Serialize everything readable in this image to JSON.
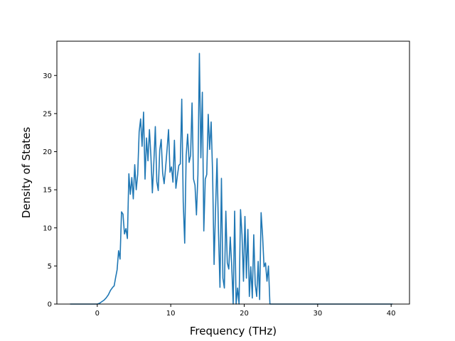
{
  "chart_data": {
    "type": "line",
    "title": "",
    "xlabel": "Frequency (THz)",
    "ylabel": "Density of States",
    "xlim": [
      -5.5,
      42.5
    ],
    "ylim": [
      0,
      34.5
    ],
    "xticks": [
      0,
      10,
      20,
      30,
      40
    ],
    "yticks": [
      0,
      5,
      10,
      15,
      20,
      25,
      30
    ],
    "grid": false,
    "legend": "none",
    "series": [
      {
        "color": "#1f77b4",
        "x": [
          -3.7,
          0.0,
          0.3,
          0.6,
          0.9,
          1.2,
          1.5,
          1.8,
          2.1,
          2.3,
          2.5,
          2.7,
          2.9,
          3.1,
          3.3,
          3.5,
          3.7,
          3.9,
          4.1,
          4.3,
          4.5,
          4.7,
          4.9,
          5.1,
          5.3,
          5.5,
          5.7,
          5.9,
          6.1,
          6.3,
          6.5,
          6.7,
          6.9,
          7.1,
          7.3,
          7.5,
          7.7,
          7.9,
          8.1,
          8.3,
          8.5,
          8.7,
          8.9,
          9.1,
          9.3,
          9.5,
          9.7,
          9.9,
          10.1,
          10.3,
          10.5,
          10.7,
          10.9,
          11.1,
          11.3,
          11.5,
          11.7,
          11.9,
          12.1,
          12.3,
          12.5,
          12.7,
          12.9,
          13.1,
          13.3,
          13.5,
          13.7,
          13.9,
          14.1,
          14.3,
          14.5,
          14.7,
          14.9,
          15.1,
          15.3,
          15.5,
          15.7,
          15.9,
          16.1,
          16.3,
          16.5,
          16.7,
          16.9,
          17.1,
          17.3,
          17.5,
          17.7,
          17.9,
          18.1,
          18.3,
          18.5,
          18.7,
          18.9,
          19.1,
          19.3,
          19.5,
          19.7,
          19.9,
          20.1,
          20.3,
          20.5,
          20.7,
          20.9,
          21.1,
          21.3,
          21.5,
          21.7,
          21.9,
          22.1,
          22.3,
          22.5,
          22.7,
          22.9,
          23.1,
          23.3,
          23.5,
          23.7,
          23.9,
          24.1,
          24.3,
          24.5,
          24.7,
          24.9,
          25.1,
          25.3,
          25.5,
          25.7,
          25.9,
          26.1,
          26.3,
          26.5,
          26.7,
          26.9,
          27.5,
          30.0,
          35.0,
          40.2
        ],
        "y": [
          0,
          0,
          0.1,
          0.3,
          0.5,
          0.8,
          1.2,
          1.8,
          2.2,
          2.4,
          3.5,
          4.5,
          7.0,
          5.9,
          12.1,
          11.8,
          9.2,
          9.9,
          8.6,
          17.1,
          14.4,
          16.6,
          13.8,
          18.3,
          15.0,
          17.0,
          22.6,
          24.3,
          20.7,
          25.2,
          16.4,
          21.8,
          18.8,
          22.9,
          19.4,
          14.6,
          18.6,
          23.3,
          16.1,
          14.9,
          20.2,
          21.6,
          17.2,
          15.8,
          17.9,
          20.3,
          22.9,
          17.3,
          18.0,
          16.0,
          21.5,
          15.2,
          16.8,
          18.2,
          18.4,
          26.9,
          13.4,
          8.0,
          19.5,
          22.3,
          18.6,
          19.5,
          26.4,
          16.4,
          15.6,
          11.7,
          17.0,
          32.9,
          19.2,
          27.8,
          9.6,
          16.4,
          17.0,
          24.9,
          20.3,
          23.9,
          17.0,
          5.2,
          12.5,
          19.1,
          9.4,
          2.2,
          16.5,
          3.4,
          2.1,
          12.2,
          5.4,
          4.6,
          8.8,
          5.0,
          0.0,
          12.2,
          0.0,
          2.1,
          0.0,
          12.4,
          9.1,
          3.0,
          11.5,
          3.4,
          9.8,
          1.0,
          4.9,
          0.8,
          9.1,
          2.6,
          1.0,
          5.6,
          0.6,
          12.0,
          9.0,
          4.9,
          5.4,
          3.0,
          5.0,
          0.0,
          0.0,
          0.0,
          0.0,
          0.0,
          0.0,
          0.0,
          0.0,
          0.0,
          0.0,
          0.0,
          0.0,
          0.0,
          0.0,
          0.0,
          0.0,
          0.0,
          0.0,
          0.0,
          0.0,
          0.0,
          0.0
        ]
      }
    ]
  }
}
